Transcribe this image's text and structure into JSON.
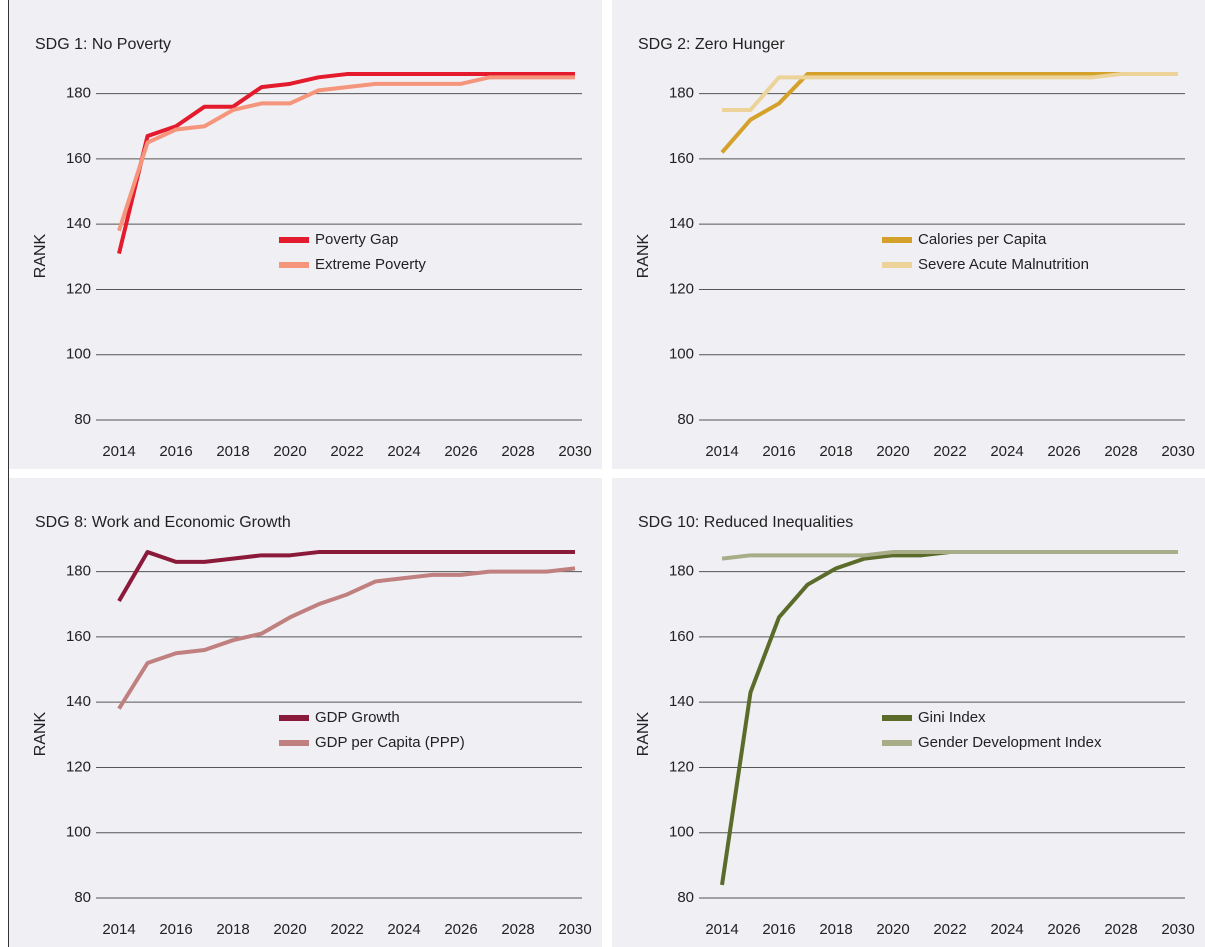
{
  "chart_data": [
    {
      "type": "line",
      "title": "SDG 1: No Poverty",
      "y_label": "RANK",
      "x": [
        2014,
        2015,
        2016,
        2017,
        2018,
        2019,
        2020,
        2021,
        2022,
        2023,
        2024,
        2025,
        2026,
        2027,
        2028,
        2029,
        2030
      ],
      "xlim": [
        2014,
        2030
      ],
      "xticks": [
        2014,
        2016,
        2018,
        2020,
        2022,
        2024,
        2026,
        2028,
        2030
      ],
      "ylim": [
        80,
        190
      ],
      "yticks": [
        80,
        100,
        120,
        140,
        160,
        180
      ],
      "grid": true,
      "series": [
        {
          "name": "Poverty Gap",
          "color": "#e31b2d",
          "values": [
            131,
            167,
            170,
            176,
            176,
            182,
            183,
            185,
            186,
            186,
            186,
            186,
            186,
            186,
            186,
            186,
            186
          ]
        },
        {
          "name": "Extreme Poverty",
          "color": "#f4957c",
          "values": [
            138,
            165,
            169,
            170,
            175,
            177,
            177,
            181,
            182,
            183,
            183,
            183,
            183,
            185,
            185,
            185,
            185
          ]
        }
      ]
    },
    {
      "type": "line",
      "title": "SDG 2: Zero Hunger",
      "y_label": "RANK",
      "x": [
        2014,
        2015,
        2016,
        2017,
        2018,
        2019,
        2020,
        2021,
        2022,
        2023,
        2024,
        2025,
        2026,
        2027,
        2028,
        2029,
        2030
      ],
      "xlim": [
        2014,
        2030
      ],
      "xticks": [
        2014,
        2016,
        2018,
        2020,
        2022,
        2024,
        2026,
        2028,
        2030
      ],
      "ylim": [
        80,
        190
      ],
      "yticks": [
        80,
        100,
        120,
        140,
        160,
        180
      ],
      "grid": true,
      "series": [
        {
          "name": "Calories per Capita",
          "color": "#d4a22a",
          "values": [
            162,
            172,
            177,
            186,
            186,
            186,
            186,
            186,
            186,
            186,
            186,
            186,
            186,
            186,
            186,
            186,
            186
          ]
        },
        {
          "name": "Severe Acute Malnutrition",
          "color": "#ecd39a",
          "values": [
            175,
            175,
            185,
            185,
            185,
            185,
            185,
            185,
            185,
            185,
            185,
            185,
            185,
            185,
            186,
            186,
            186
          ]
        }
      ]
    },
    {
      "type": "line",
      "title": "SDG 8: Work and Economic Growth",
      "y_label": "RANK",
      "x": [
        2014,
        2015,
        2016,
        2017,
        2018,
        2019,
        2020,
        2021,
        2022,
        2023,
        2024,
        2025,
        2026,
        2027,
        2028,
        2029,
        2030
      ],
      "xlim": [
        2014,
        2030
      ],
      "xticks": [
        2014,
        2016,
        2018,
        2020,
        2022,
        2024,
        2026,
        2028,
        2030
      ],
      "ylim": [
        80,
        190
      ],
      "yticks": [
        80,
        100,
        120,
        140,
        160,
        180
      ],
      "grid": true,
      "series": [
        {
          "name": "GDP Growth",
          "color": "#8b1a3a",
          "values": [
            171,
            186,
            183,
            183,
            184,
            185,
            185,
            186,
            186,
            186,
            186,
            186,
            186,
            186,
            186,
            186,
            186
          ]
        },
        {
          "name": "GDP per Capita (PPP)",
          "color": "#c08080",
          "values": [
            138,
            152,
            155,
            156,
            159,
            161,
            166,
            170,
            173,
            177,
            178,
            179,
            179,
            180,
            180,
            180,
            181
          ]
        }
      ]
    },
    {
      "type": "line",
      "title": "SDG 10: Reduced Inequalities",
      "y_label": "RANK",
      "x": [
        2014,
        2015,
        2016,
        2017,
        2018,
        2019,
        2020,
        2021,
        2022,
        2023,
        2024,
        2025,
        2026,
        2027,
        2028,
        2029,
        2030
      ],
      "xlim": [
        2014,
        2030
      ],
      "xticks": [
        2014,
        2016,
        2018,
        2020,
        2022,
        2024,
        2026,
        2028,
        2030
      ],
      "ylim": [
        80,
        190
      ],
      "yticks": [
        80,
        100,
        120,
        140,
        160,
        180
      ],
      "grid": true,
      "series": [
        {
          "name": "Gini Index",
          "color": "#5a6b2a",
          "values": [
            84,
            143,
            166,
            176,
            181,
            184,
            185,
            185,
            186,
            186,
            186,
            186,
            186,
            186,
            186,
            186,
            186
          ]
        },
        {
          "name": "Gender Development Index",
          "color": "#a8ad88",
          "values": [
            184,
            185,
            185,
            185,
            185,
            185,
            186,
            186,
            186,
            186,
            186,
            186,
            186,
            186,
            186,
            186,
            186
          ]
        }
      ]
    }
  ]
}
